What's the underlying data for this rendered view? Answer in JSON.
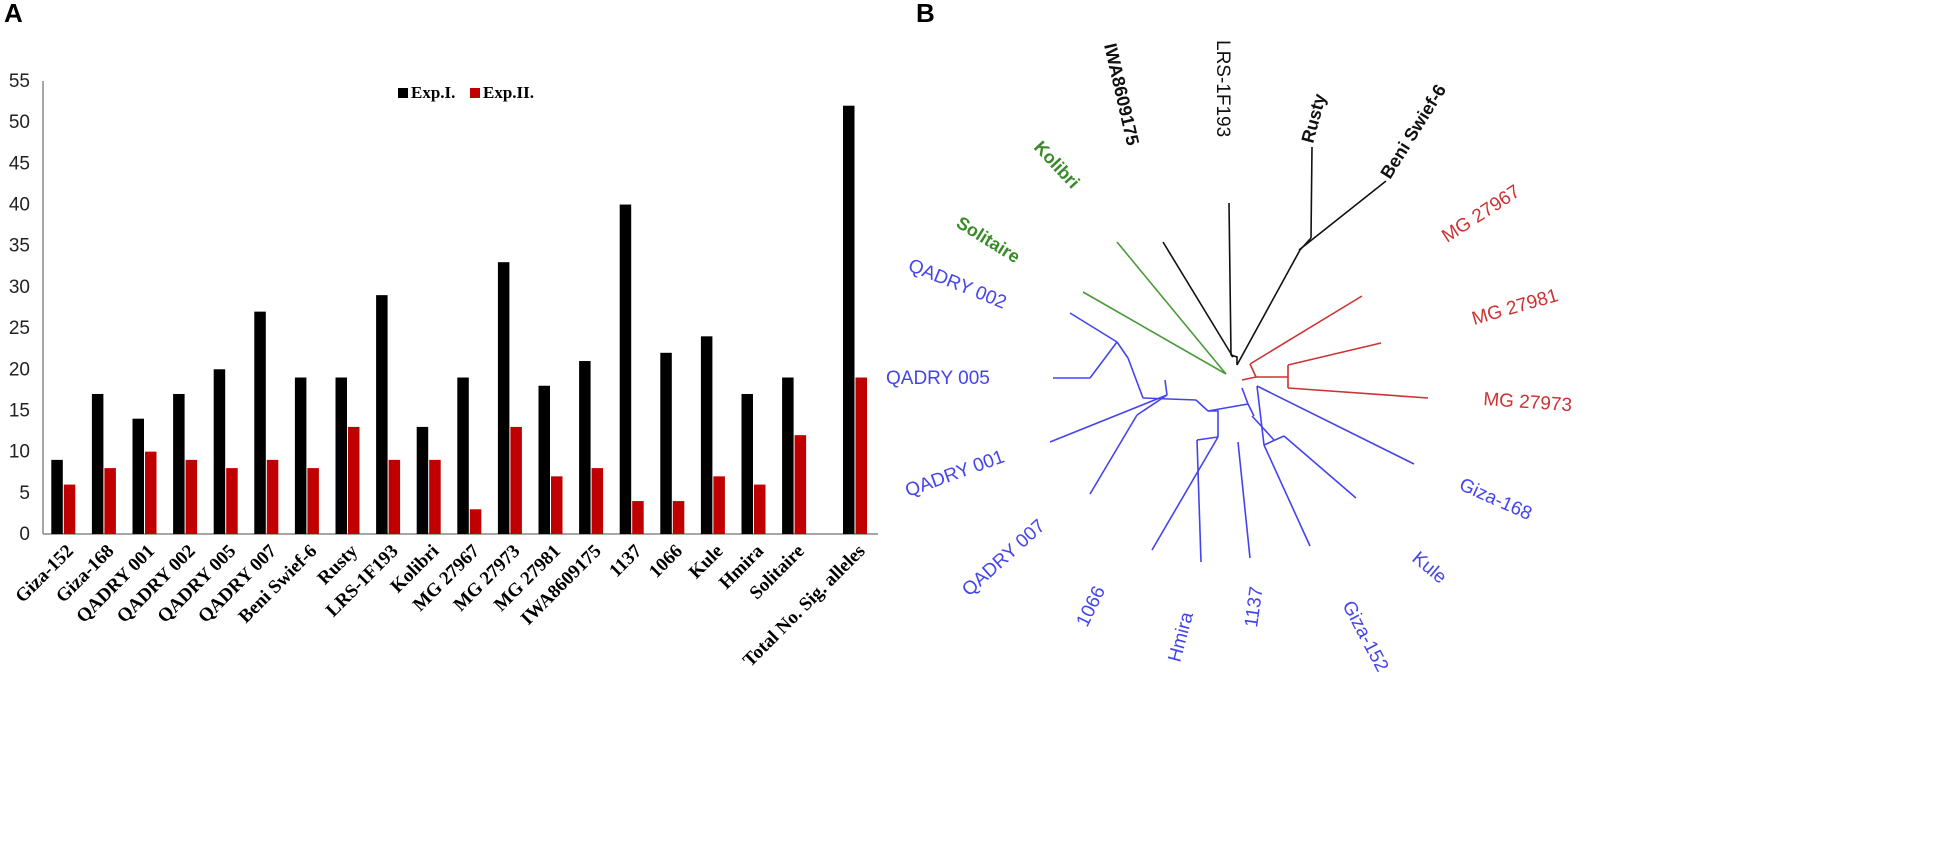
{
  "panels": {
    "a_label": "A",
    "b_label": "B"
  },
  "chart_data": [
    {
      "type": "bar",
      "title": "",
      "xlabel": "",
      "ylabel": "",
      "ylim": [
        0,
        55
      ],
      "yticks": [
        0,
        5,
        10,
        15,
        20,
        25,
        30,
        35,
        40,
        45,
        50,
        55
      ],
      "legend_position": "top-center",
      "categories": [
        "Giza-152",
        "Giza-168",
        "QADRY 001",
        "QADRY 002",
        "QADRY 005",
        "QADRY 007",
        "Beni Swief-6",
        "Rusty",
        "LRS-1F193",
        "Kolibri",
        "MG 27967",
        "MG 27973",
        "MG 27981",
        "IWA8609175",
        "1137",
        "1066",
        "Kule",
        "Hmira",
        "Solitaire",
        "Total No. Sig. alleles"
      ],
      "series": [
        {
          "name": "Exp.I.",
          "color": "#000000",
          "values": [
            9,
            17,
            14,
            17,
            20,
            27,
            19,
            19,
            29,
            13,
            19,
            33,
            18,
            21,
            40,
            22,
            24,
            17,
            19,
            52
          ]
        },
        {
          "name": "Exp.II.",
          "color": "#c00000",
          "values": [
            6,
            8,
            10,
            9,
            8,
            9,
            8,
            13,
            9,
            9,
            3,
            13,
            7,
            8,
            4,
            4,
            7,
            6,
            12,
            19
          ]
        }
      ]
    },
    {
      "type": "dendrogram",
      "title": "",
      "groups": [
        {
          "name": "black",
          "color": "#111111",
          "leaves": [
            "IWA8609175",
            "LRS-1F193",
            "Rusty",
            "Beni Swief-6"
          ]
        },
        {
          "name": "red",
          "color": "#cc2222",
          "leaves": [
            "MG 27967",
            "MG 27981",
            "MG 27973"
          ]
        },
        {
          "name": "blue",
          "color": "#3333dd",
          "leaves": [
            "Giza-168",
            "Kule",
            "Giza-152",
            "1137",
            "Hmira",
            "1066",
            "QADRY 007",
            "QADRY 001",
            "QADRY 005",
            "QADRY 002"
          ]
        },
        {
          "name": "green",
          "color": "#3a8a2a",
          "leaves": [
            "Solitaire",
            "Kolibri"
          ]
        }
      ]
    }
  ]
}
